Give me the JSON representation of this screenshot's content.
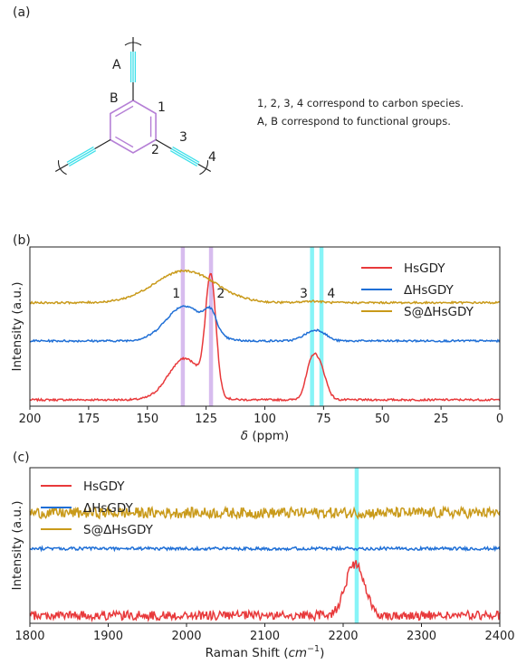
{
  "panel_a": {
    "label": "(a)",
    "atom_labels": {
      "A": "A",
      "B": "B",
      "c1": "1",
      "c2": "2",
      "c3": "3",
      "c4": "4"
    },
    "note_line1": "1, 2, 3, 4 correspond to carbon species.",
    "note_line2": "A, B correspond to functional groups.",
    "ring_color": "#b57fd6",
    "alkyne_color": "#3fe0ea"
  },
  "chart_data": [
    {
      "panel": "(b)",
      "type": "line",
      "xlabel_main": "δ",
      "xlabel_unit": " (ppm)",
      "ylabel": "Intensity (a.u.)",
      "xlim": [
        200,
        0
      ],
      "x_reversed": true,
      "x_ticks": [
        200,
        175,
        150,
        125,
        100,
        75,
        50,
        25,
        0
      ],
      "legend_position": "top-right",
      "highlights": [
        {
          "x": 135,
          "color": "#c9a6e8",
          "label": "1"
        },
        {
          "x": 123,
          "color": "#c9a6e8",
          "label": "2"
        },
        {
          "x": 80,
          "color": "#5ff0f4",
          "label": "3"
        },
        {
          "x": 76,
          "color": "#5ff0f4",
          "label": "4"
        }
      ],
      "series": [
        {
          "name": "HsGDY",
          "color": "#e8393b",
          "baseline": 0.04,
          "peaks": [
            [
              134,
              0.26,
              7
            ],
            [
              123,
              0.72,
              2.2
            ],
            [
              80,
              0.23,
              2.5
            ],
            [
              76,
              0.16,
              2.5
            ]
          ]
        },
        {
          "name": "ΔHsGDY",
          "color": "#1f6fd6",
          "baseline": 0.41,
          "peaks": [
            [
              134,
              0.22,
              8
            ],
            [
              123,
              0.12,
              2.5
            ],
            [
              80,
              0.05,
              4
            ],
            [
              76,
              0.03,
              3
            ]
          ]
        },
        {
          "name": "S@ΔHsGDY",
          "color": "#c99a1a",
          "baseline": 0.65,
          "peaks": [
            [
              134,
              0.2,
              13
            ],
            [
              80,
              0.01,
              4
            ]
          ]
        }
      ]
    },
    {
      "panel": "(c)",
      "type": "line",
      "xlabel_main": "Raman Shift (",
      "xlabel_unit": "cm",
      "xlabel_exp": "−1",
      "xlabel_close": ")",
      "ylabel": "Intensity (a.u.)",
      "xlim": [
        1800,
        2400
      ],
      "x_ticks": [
        1800,
        1900,
        2000,
        2100,
        2200,
        2300,
        2400
      ],
      "legend_position": "top-left",
      "highlights": [
        {
          "x": 2217,
          "color": "#5ff0f4"
        }
      ],
      "series": [
        {
          "name": "HsGDY",
          "color": "#e8393b",
          "baseline": 0.05,
          "noise": 0.03,
          "peaks": [
            [
              2215,
              0.33,
              12
            ]
          ]
        },
        {
          "name": "ΔHsGDY",
          "color": "#1f6fd6",
          "baseline": 0.48,
          "noise": 0.01,
          "peaks": []
        },
        {
          "name": "S@ΔHsGDY",
          "color": "#c99a1a",
          "baseline": 0.71,
          "noise": 0.035,
          "peaks": []
        }
      ]
    }
  ]
}
